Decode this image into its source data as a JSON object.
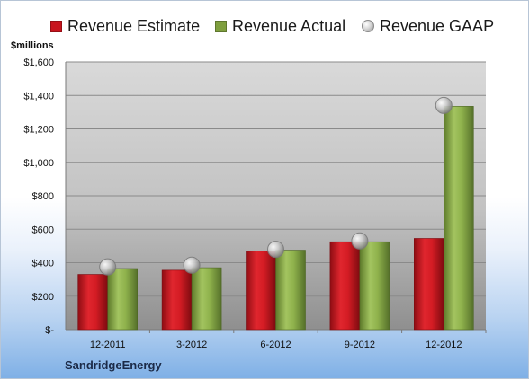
{
  "chart_data": {
    "type": "bar",
    "unit_label": "$millions",
    "company": "SandridgeEnergy",
    "categories": [
      "12-2011",
      "3-2012",
      "6-2012",
      "9-2012",
      "12-2012"
    ],
    "series": [
      {
        "name": "Revenue Estimate",
        "type": "bar",
        "color": "#c8141e",
        "values": [
          330,
          355,
          470,
          525,
          545
        ]
      },
      {
        "name": "Revenue Actual",
        "type": "bar",
        "color": "#7f9f3e",
        "values": [
          365,
          370,
          475,
          525,
          1335
        ]
      },
      {
        "name": "Revenue GAAP",
        "type": "marker",
        "color": "#a0a0a0",
        "values": [
          375,
          385,
          480,
          530,
          1340
        ]
      }
    ],
    "ylim": [
      0,
      1600
    ],
    "yticks": [
      0,
      200,
      400,
      600,
      800,
      1000,
      1200,
      1400,
      1600
    ],
    "ytick_labels": [
      "$-",
      "$200",
      "$400",
      "$600",
      "$800",
      "$1,000",
      "$1,200",
      "$1,400",
      "$1,600"
    ],
    "grid": true,
    "legend_position": "top"
  }
}
